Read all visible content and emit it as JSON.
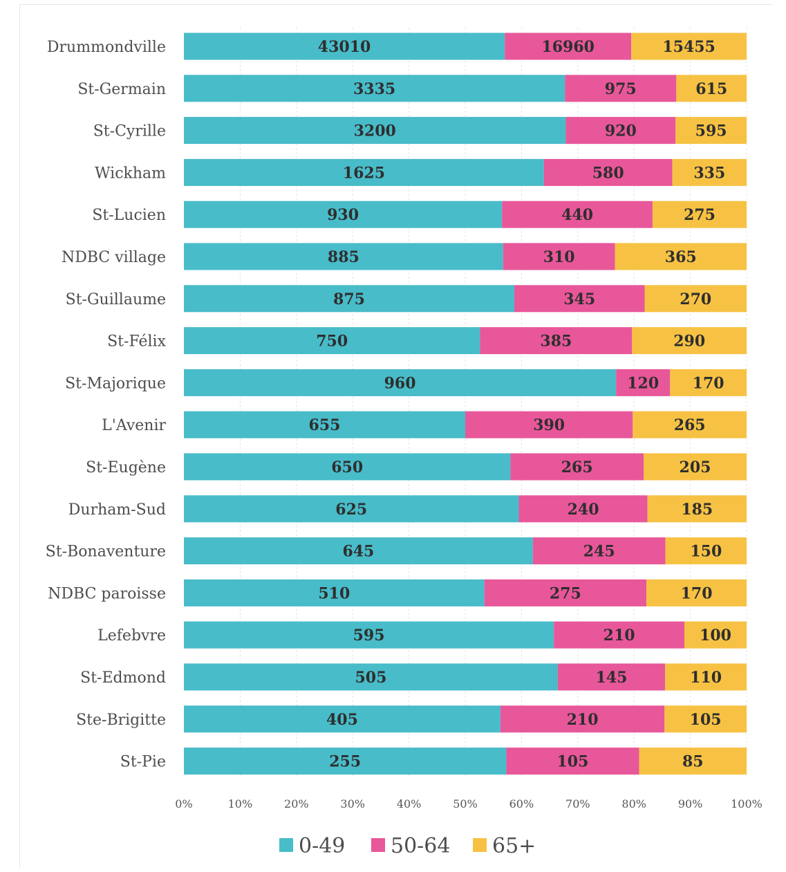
{
  "chart_data": {
    "type": "bar",
    "orientation": "horizontal",
    "stacked": "percent",
    "categories": [
      "Drummondville",
      "St-Germain",
      "St-Cyrille",
      "Wickham",
      "St-Lucien",
      "NDBC village",
      "St-Guillaume",
      "St-Félix",
      "St-Majorique",
      "L'Avenir",
      "St-Eugène",
      "Durham-Sud",
      "St-Bonaventure",
      "NDBC paroisse",
      "Lefebvre",
      "St-Edmond",
      "Ste-Brigitte",
      "St-Pie"
    ],
    "series": [
      {
        "name": "0-49",
        "color": "#48bcc9",
        "values": [
          43010,
          3335,
          3200,
          1625,
          930,
          885,
          875,
          750,
          960,
          655,
          650,
          625,
          645,
          510,
          595,
          505,
          405,
          255
        ]
      },
      {
        "name": "50-64",
        "color": "#e8579a",
        "values": [
          16960,
          975,
          920,
          580,
          440,
          310,
          345,
          385,
          120,
          390,
          265,
          240,
          245,
          275,
          210,
          145,
          210,
          105
        ]
      },
      {
        "name": "65+",
        "color": "#f7c244",
        "values": [
          15455,
          615,
          595,
          335,
          275,
          365,
          270,
          290,
          170,
          265,
          205,
          185,
          150,
          170,
          100,
          110,
          105,
          85
        ]
      }
    ],
    "data_labels": [
      [
        "43010",
        "16960",
        "15455"
      ],
      [
        "3335",
        "975",
        "615"
      ],
      [
        "3200",
        "920",
        "595"
      ],
      [
        "1625",
        "580",
        "335"
      ],
      [
        "930",
        "440",
        "275"
      ],
      [
        "885",
        "310",
        "365"
      ],
      [
        "875",
        "345",
        "270"
      ],
      [
        "750",
        "385",
        "290"
      ],
      [
        "960",
        "120",
        "170"
      ],
      [
        "655",
        "390",
        "265"
      ],
      [
        "650",
        "265",
        "205"
      ],
      [
        "625",
        "240",
        "185"
      ],
      [
        "645",
        "245",
        "150"
      ],
      [
        "510",
        "275",
        "170"
      ],
      [
        "595",
        "210",
        "100"
      ],
      [
        "505",
        "145",
        "110"
      ],
      [
        "405",
        "210",
        "105"
      ],
      [
        "255",
        "105",
        "85"
      ]
    ],
    "x_ticks": [
      "0%",
      "10%",
      "20%",
      "30%",
      "40%",
      "50%",
      "60%",
      "70%",
      "80%",
      "90%",
      "100%"
    ],
    "xlim": [
      0,
      100
    ],
    "title": "",
    "xlabel": "",
    "ylabel": "",
    "grid": true,
    "legend": {
      "position": "bottom",
      "entries": [
        "0-49",
        "50-64",
        "65+"
      ]
    }
  }
}
